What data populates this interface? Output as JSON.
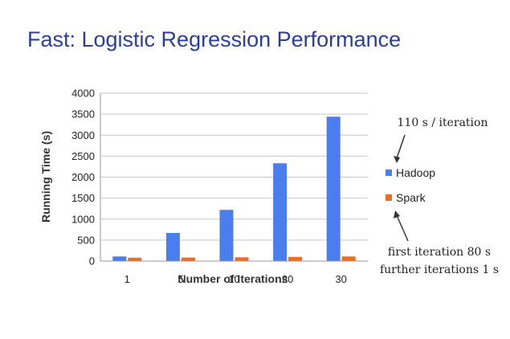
{
  "slide": {
    "title": "Fast: Logistic Regression Performance"
  },
  "chart_data": {
    "type": "bar",
    "categories": [
      "1",
      "5",
      "10",
      "20",
      "30"
    ],
    "series": [
      {
        "name": "Hadoop",
        "color": "#4a7ded",
        "values": [
          110,
          670,
          1220,
          2330,
          3440
        ]
      },
      {
        "name": "Spark",
        "color": "#f26b1d",
        "values": [
          80,
          84,
          90,
          100,
          110
        ]
      }
    ],
    "xlabel": "Number of Iterations",
    "ylabel": "Running Time (s)",
    "ylim": [
      0,
      4000
    ],
    "yticks": [
      0,
      500,
      1000,
      1500,
      2000,
      2500,
      3000,
      3500,
      4000
    ],
    "grid": true,
    "legend_placement": "right",
    "annotations": [
      {
        "text": "110 s / iteration",
        "points_to": "Hadoop"
      },
      {
        "text": "first iteration 80 s",
        "points_to": "Spark"
      },
      {
        "text": "further iterations 1 s",
        "points_to": "Spark"
      }
    ]
  }
}
